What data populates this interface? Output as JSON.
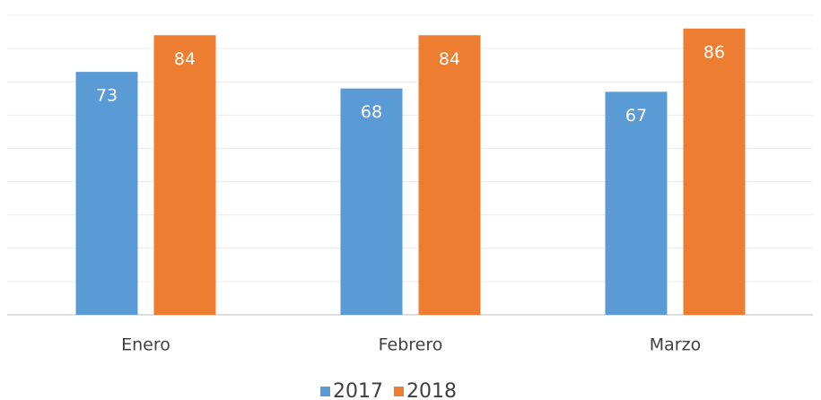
{
  "chart_data": {
    "type": "bar",
    "categories": [
      "Enero",
      "Febrero",
      "Marzo"
    ],
    "series": [
      {
        "name": "2017",
        "color": "#5b9bd5",
        "values": [
          73,
          68,
          67
        ]
      },
      {
        "name": "2018",
        "color": "#ed7d31",
        "values": [
          84,
          84,
          86
        ]
      }
    ],
    "ylim": [
      0,
      90
    ],
    "yticks": [
      0,
      10,
      20,
      30,
      40,
      50,
      60,
      70,
      80,
      90
    ],
    "grid": true,
    "legend": "bottom"
  }
}
